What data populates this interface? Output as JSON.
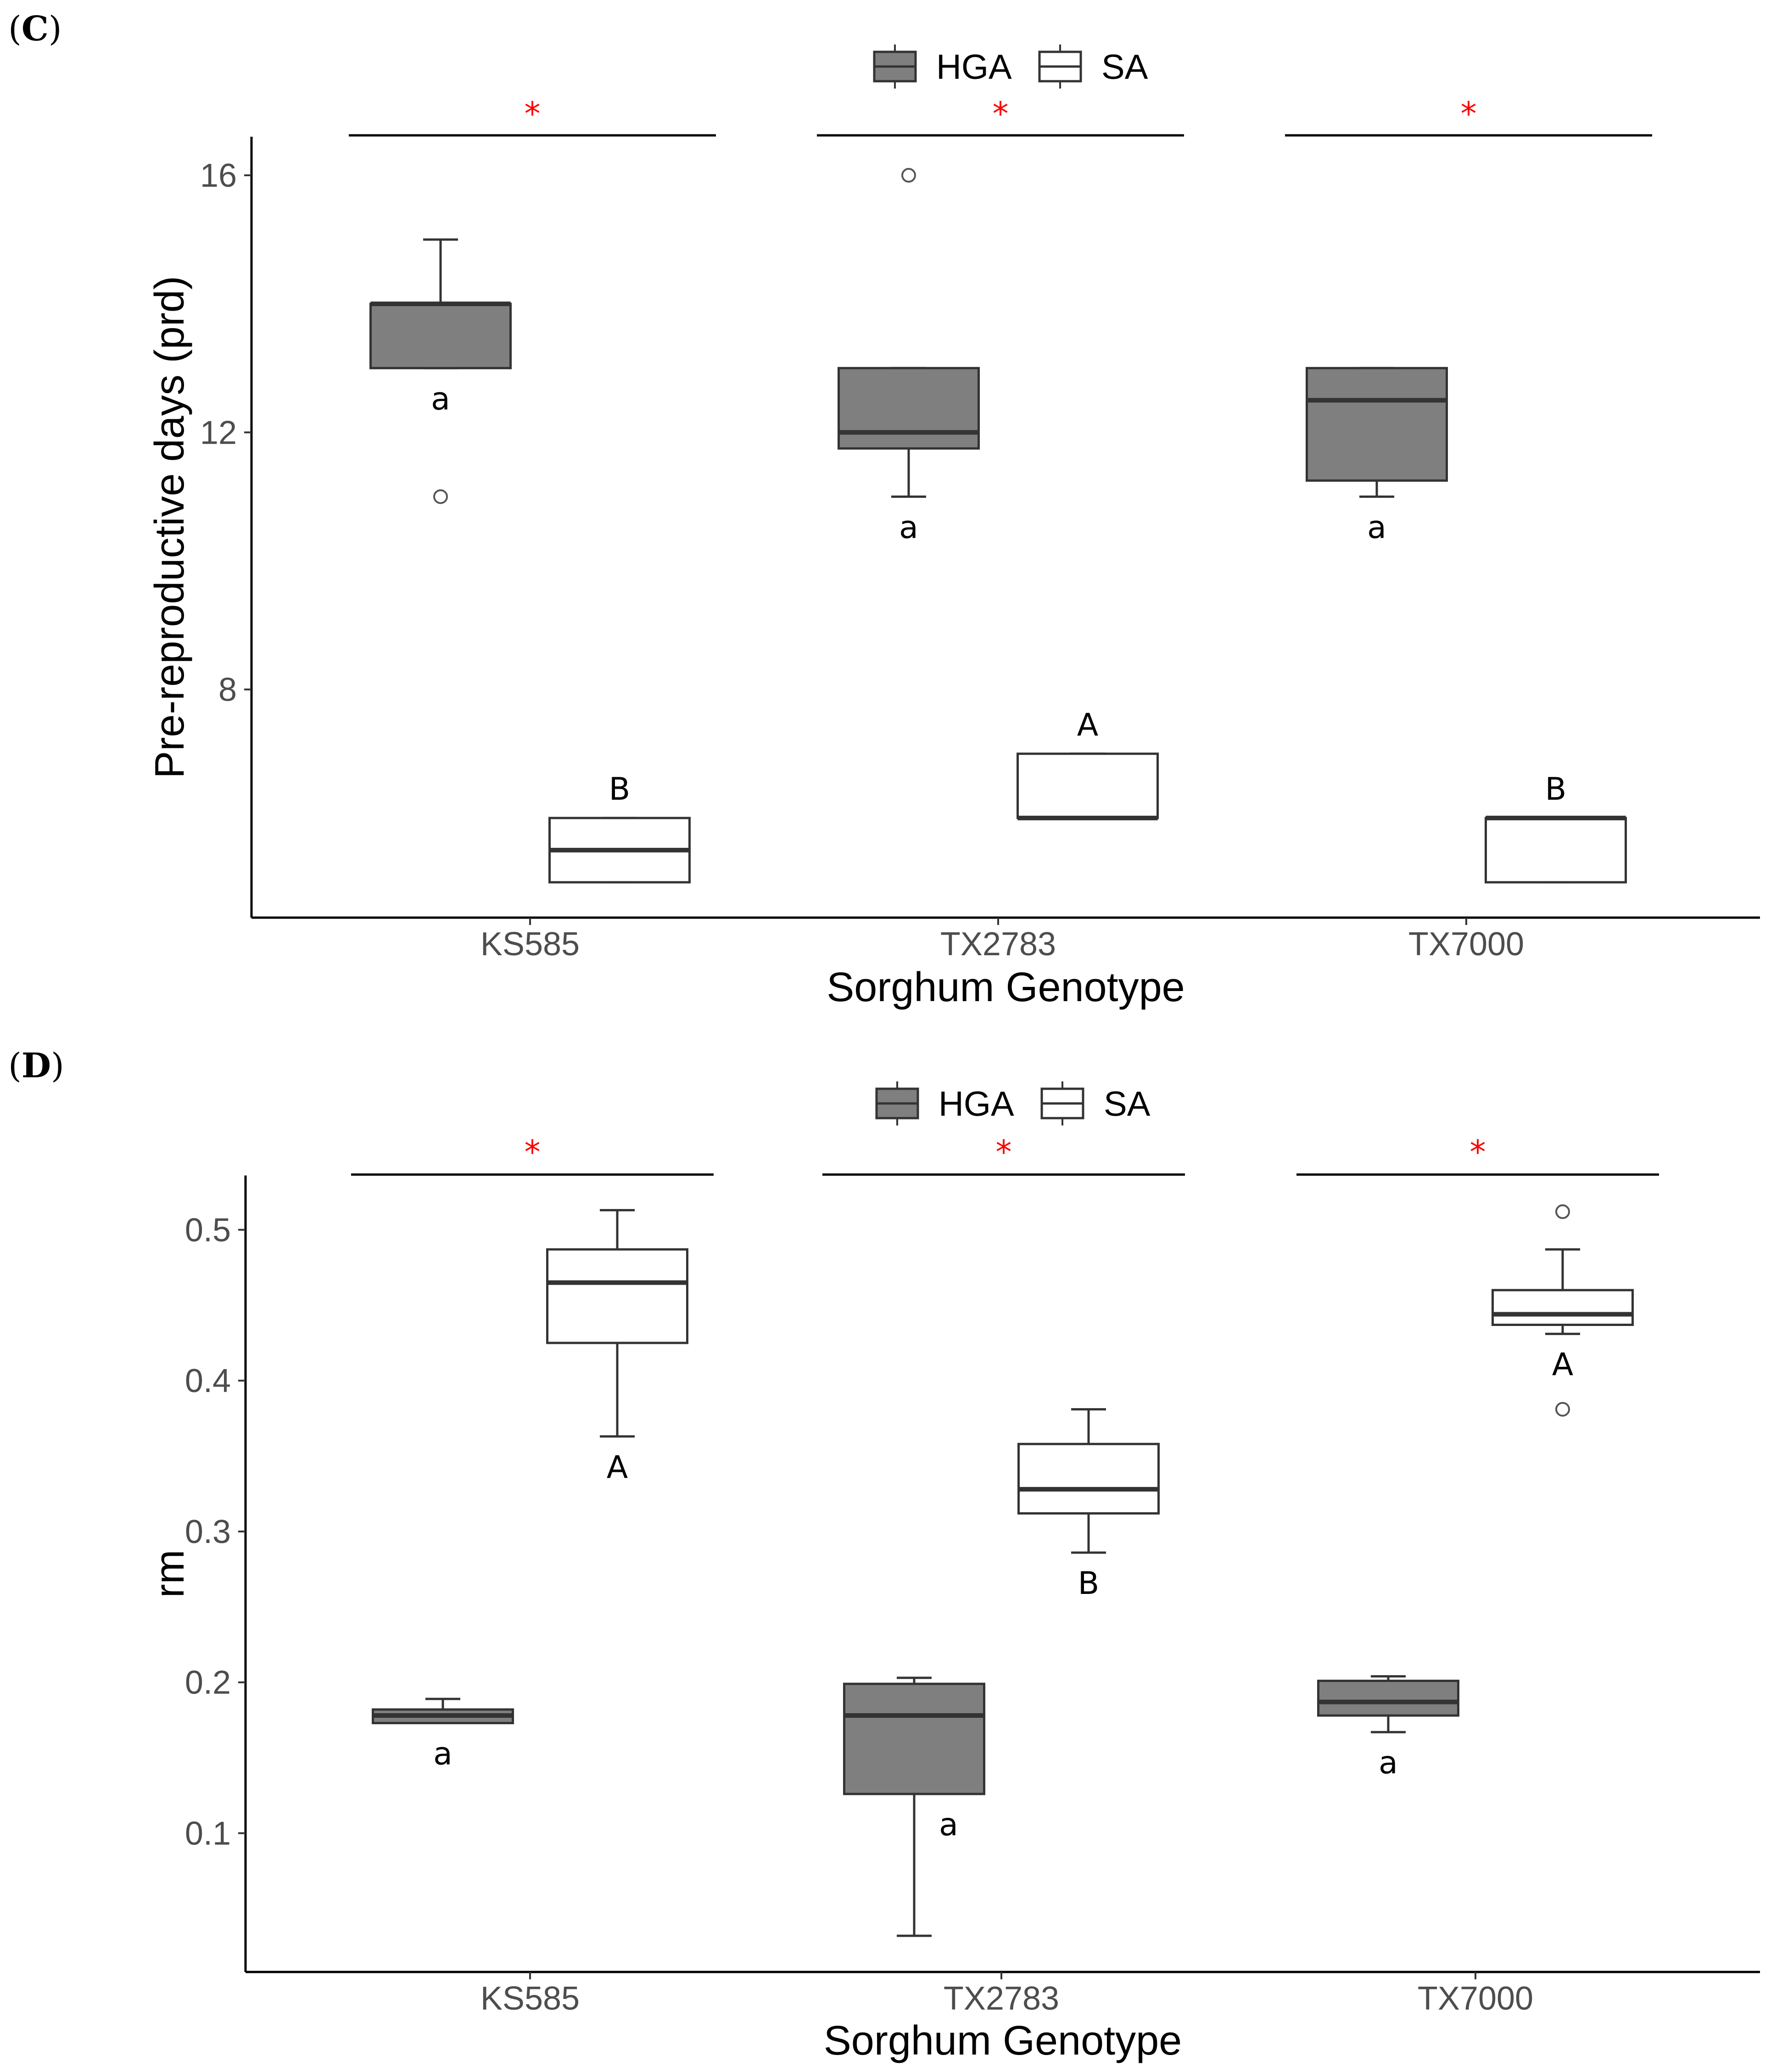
{
  "colors": {
    "HGA": "#7f7f7f",
    "SA": "#ffffff",
    "line": "#333333",
    "star": "#ff0000"
  },
  "chart_data": [
    {
      "panel": "C",
      "type": "box",
      "xlabel": "Sorghum Genotype",
      "ylabel": "Pre-reproductive days (prd)",
      "ylim": [
        4.45,
        16.6
      ],
      "yticks": [
        8,
        12,
        16
      ],
      "ytick_labels": [
        "8",
        "12",
        "16"
      ],
      "categories": [
        "KS585",
        "TX2783",
        "TX7000"
      ],
      "legend": [
        {
          "key": "HGA",
          "label": "HGA"
        },
        {
          "key": "SA",
          "label": "SA"
        }
      ],
      "significance": [
        "*",
        "*",
        "*"
      ],
      "series": [
        {
          "name": "HGA",
          "key": "HGA",
          "boxes": [
            {
              "cat": 0,
              "whisker_low": 13,
              "q1": 13,
              "median": 14,
              "q3": 14,
              "whisker_high": 15,
              "outliers": [
                11
              ],
              "letter": "a"
            },
            {
              "cat": 1,
              "whisker_low": 11,
              "q1": 11.75,
              "median": 12,
              "q3": 13,
              "whisker_high": 13,
              "outliers": [
                16
              ],
              "letter": "a"
            },
            {
              "cat": 2,
              "whisker_low": 11,
              "q1": 11.25,
              "median": 12.5,
              "q3": 13,
              "whisker_high": 13,
              "outliers": [],
              "letter": "a"
            }
          ]
        },
        {
          "name": "SA",
          "key": "SA",
          "boxes": [
            {
              "cat": 0,
              "whisker_low": 5,
              "q1": 5,
              "median": 5.5,
              "q3": 6,
              "whisker_high": 6,
              "outliers": [],
              "letter": "B"
            },
            {
              "cat": 1,
              "whisker_low": 6,
              "q1": 6,
              "median": 6,
              "q3": 7,
              "whisker_high": 7,
              "outliers": [],
              "letter": "A"
            },
            {
              "cat": 2,
              "whisker_low": 5,
              "q1": 5,
              "median": 6,
              "q3": 6,
              "whisker_high": 6,
              "outliers": [],
              "letter": "B"
            }
          ]
        }
      ]
    },
    {
      "panel": "D",
      "type": "box",
      "xlabel": "Sorghum Genotype",
      "ylabel": "rm",
      "ylim": [
        0.008,
        0.536
      ],
      "yticks": [
        0.1,
        0.2,
        0.3,
        0.4,
        0.5
      ],
      "ytick_labels": [
        "0.1",
        "0.2",
        "0.3",
        "0.4",
        "0.5"
      ],
      "categories": [
        "KS585",
        "TX2783",
        "TX7000"
      ],
      "legend": [
        {
          "key": "HGA",
          "label": "HGA"
        },
        {
          "key": "SA",
          "label": "SA"
        }
      ],
      "significance": [
        "*",
        "*",
        "*"
      ],
      "series": [
        {
          "name": "HGA",
          "key": "HGA",
          "boxes": [
            {
              "cat": 0,
              "whisker_low": 0.173,
              "q1": 0.173,
              "median": 0.178,
              "q3": 0.182,
              "whisker_high": 0.189,
              "outliers": [],
              "letter": "a"
            },
            {
              "cat": 1,
              "whisker_low": 0.032,
              "q1": 0.126,
              "median": 0.178,
              "q3": 0.199,
              "whisker_high": 0.203,
              "outliers": [],
              "letter": "a"
            },
            {
              "cat": 2,
              "whisker_low": 0.167,
              "q1": 0.178,
              "median": 0.187,
              "q3": 0.201,
              "whisker_high": 0.204,
              "outliers": [],
              "letter": "a"
            }
          ]
        },
        {
          "name": "SA",
          "key": "SA",
          "boxes": [
            {
              "cat": 0,
              "whisker_low": 0.363,
              "q1": 0.425,
              "median": 0.465,
              "q3": 0.487,
              "whisker_high": 0.513,
              "outliers": [],
              "letter": "A"
            },
            {
              "cat": 1,
              "whisker_low": 0.286,
              "q1": 0.312,
              "median": 0.328,
              "q3": 0.358,
              "whisker_high": 0.381,
              "outliers": [],
              "letter": "B"
            },
            {
              "cat": 2,
              "whisker_low": 0.431,
              "q1": 0.437,
              "median": 0.444,
              "q3": 0.46,
              "whisker_high": 0.487,
              "outliers": [
                0.512,
                0.381
              ],
              "letter": "A"
            }
          ]
        }
      ]
    }
  ]
}
